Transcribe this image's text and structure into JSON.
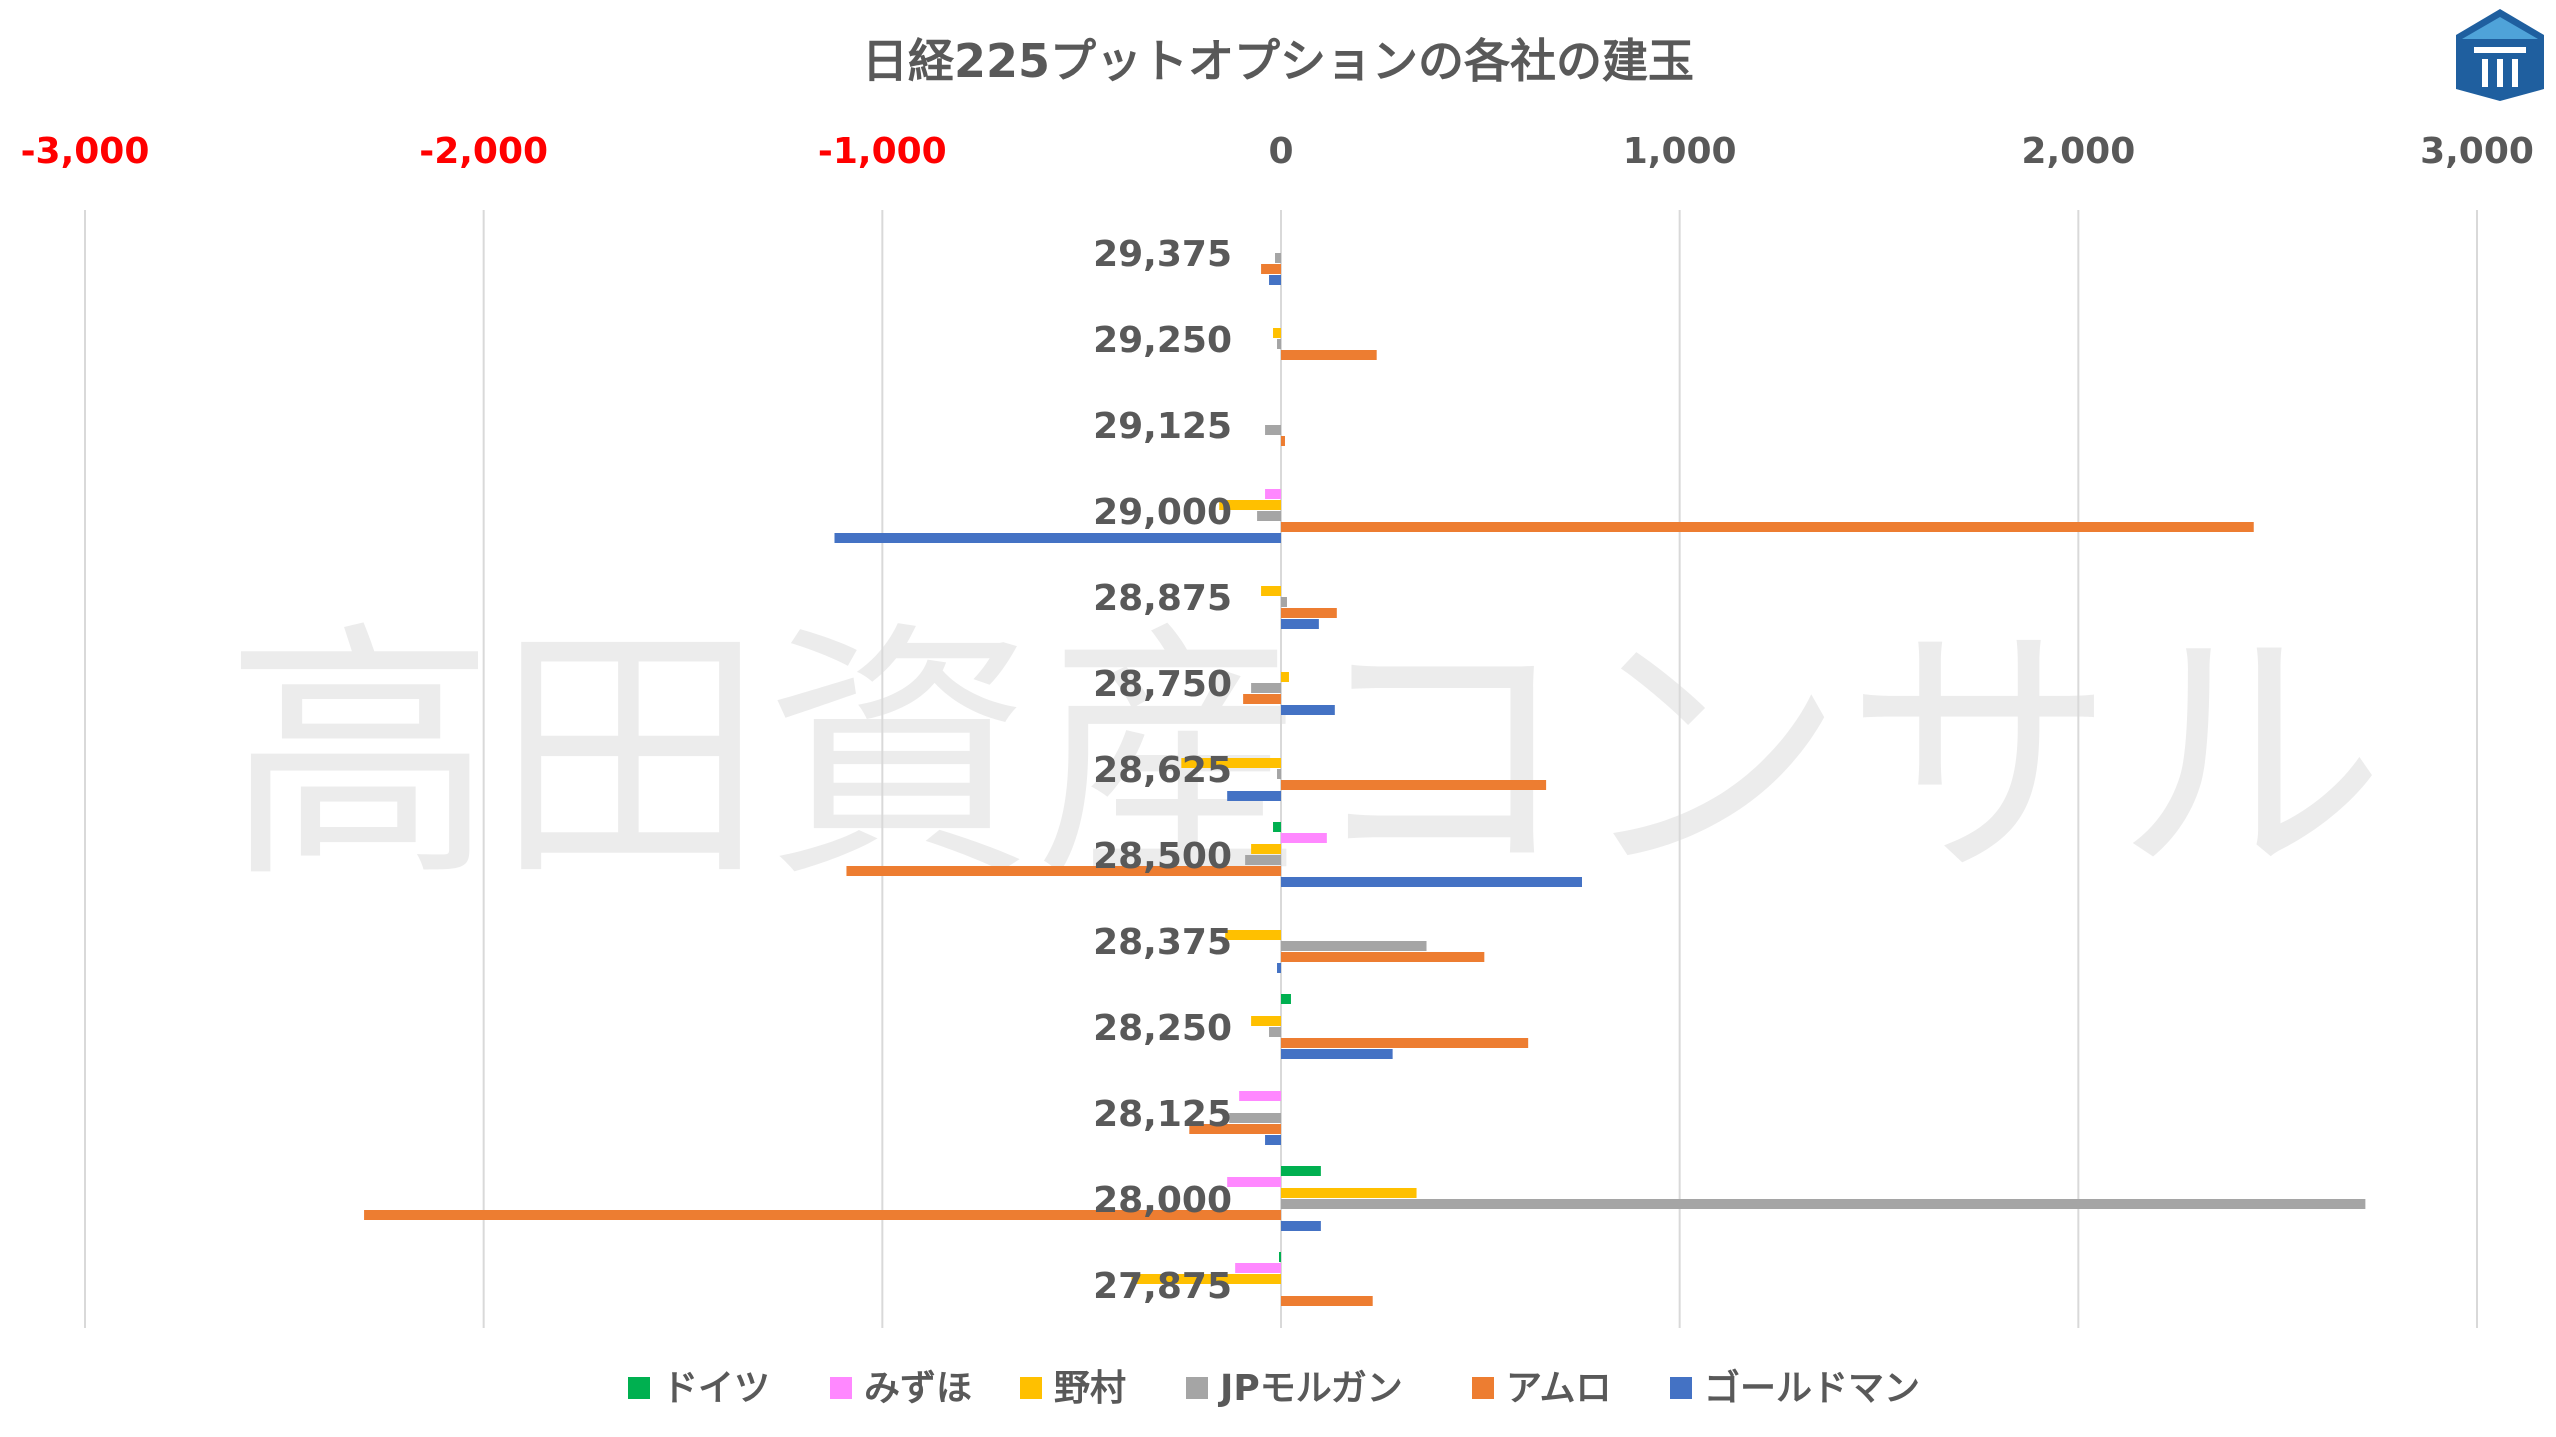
{
  "chart_data": {
    "type": "bar",
    "orientation": "horizontal",
    "title": "日経225プットオプションの各社の建玉",
    "watermark": "高田資産コンサル",
    "xlim": [
      -3000,
      3000
    ],
    "xticks": [
      -3000,
      -2000,
      -1000,
      0,
      1000,
      2000,
      3000
    ],
    "xtick_labels": [
      "-3,000",
      "-2,000",
      "-1,000",
      "0",
      "1,000",
      "2,000",
      "3,000"
    ],
    "negative_tick_color": "#ff0000",
    "positive_tick_color": "#595959",
    "grid": "vertical",
    "legend_position": "bottom",
    "categories": [
      "29,375",
      "29,250",
      "29,125",
      "29,000",
      "28,875",
      "28,750",
      "28,625",
      "28,500",
      "28,375",
      "28,250",
      "28,125",
      "28,000",
      "27,875"
    ],
    "series": [
      {
        "name": "ドイツ",
        "color": "#00b050",
        "values": [
          0,
          0,
          0,
          0,
          0,
          0,
          0,
          -20,
          0,
          25,
          0,
          100,
          -5
        ]
      },
      {
        "name": "みずほ",
        "color": "#ff88ff",
        "values": [
          0,
          0,
          0,
          -40,
          0,
          0,
          0,
          115,
          0,
          0,
          -105,
          -135,
          -115
        ]
      },
      {
        "name": "野村",
        "color": "#ffc000",
        "values": [
          0,
          -20,
          0,
          -155,
          -50,
          20,
          -250,
          -75,
          -140,
          -75,
          0,
          340,
          -375
        ]
      },
      {
        "name": "JPモルガン",
        "color": "#a5a5a5",
        "values": [
          -15,
          -10,
          -40,
          -60,
          15,
          -75,
          -10,
          -90,
          365,
          -30,
          -130,
          2720,
          0
        ]
      },
      {
        "name": "アムロ",
        "color": "#ed7d31",
        "values": [
          -50,
          240,
          10,
          2440,
          140,
          -95,
          665,
          -1090,
          510,
          620,
          -230,
          -2300,
          230
        ]
      },
      {
        "name": "ゴールドマン",
        "color": "#4472c4",
        "values": [
          -30,
          0,
          0,
          -1120,
          95,
          135,
          -135,
          755,
          -10,
          280,
          -40,
          100,
          0
        ]
      }
    ]
  },
  "logo": {
    "name": "takata-logo",
    "colors": [
      "#1f5f9f",
      "#4fa3d9"
    ]
  }
}
